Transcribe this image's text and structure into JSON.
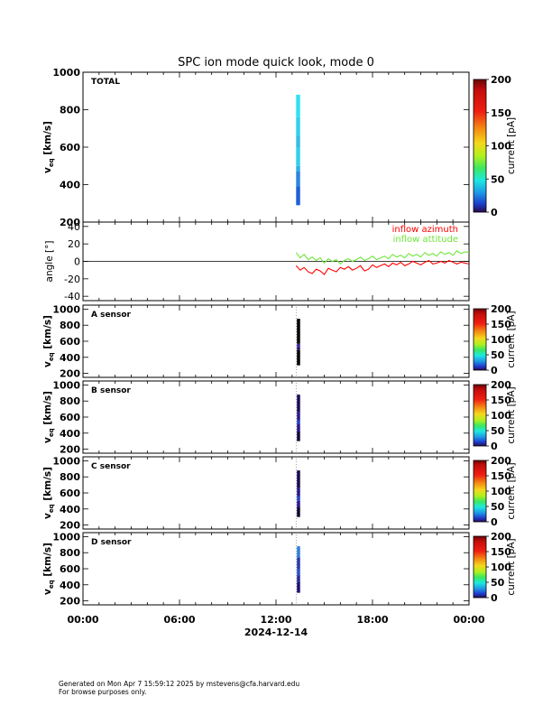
{
  "header": {
    "title": "SPC ion mode quick look, mode 0"
  },
  "x_axis": {
    "ticks": [
      "00:00",
      "06:00",
      "12:00",
      "18:00",
      "00:00"
    ],
    "date": "2024-12-14"
  },
  "ylabels": {
    "v": "v",
    "v_sub": "eq",
    "v_unit": "[km/s]",
    "angle": "angle [°]",
    "current": "current [pA]"
  },
  "colors": {
    "azimuth": "#ff0000",
    "attitude": "#6fe639",
    "zero_line": "#000000"
  },
  "footer": {
    "line1": "Generated on Mon Apr  7 15:59:12 2025 by mstevens@cfa.harvard.edu",
    "line2": "For browse purposes only."
  },
  "chart_data": [
    {
      "type": "heatmap",
      "panel_label": "TOTAL",
      "xlim_hours": [
        0,
        24
      ],
      "ylim": [
        200,
        1000
      ],
      "yticks": [
        "200",
        "400",
        "600",
        "800",
        "1000"
      ],
      "colorbar": {
        "range": [
          0,
          200
        ],
        "ticks": [
          "0",
          "50",
          "100",
          "150",
          "200"
        ],
        "label": "current [pA]"
      },
      "columns": [
        {
          "x_hours": [
            13.25,
            13.5
          ],
          "bins": [
            {
              "v": [
                290,
                390
              ],
              "color": "#1d5fd6"
            },
            {
              "v": [
                390,
                470
              ],
              "color": "#2a86e0"
            },
            {
              "v": [
                470,
                500
              ],
              "color": "#2fb0e6"
            },
            {
              "v": [
                500,
                600
              ],
              "color": "#32d0ea"
            },
            {
              "v": [
                600,
                660
              ],
              "color": "#36bde6"
            },
            {
              "v": [
                660,
                760
              ],
              "color": "#33d0ee"
            },
            {
              "v": [
                760,
                880
              ],
              "color": "#30e2f0"
            }
          ]
        }
      ]
    },
    {
      "type": "line",
      "xlim_hours": [
        0,
        24
      ],
      "ylim": [
        -45,
        45
      ],
      "yticks": [
        "-40",
        "-20",
        "0",
        "20",
        "40"
      ],
      "series": [
        {
          "name": "inflow azimuth",
          "color": "#ff0000",
          "x_hours": [
            13.25,
            13.5,
            13.75,
            14.0,
            14.25,
            14.5,
            14.75,
            15.0,
            15.25,
            15.5,
            15.75,
            16.0,
            16.25,
            16.5,
            16.75,
            17.0,
            17.25,
            17.5,
            17.75,
            18.0,
            18.25,
            18.5,
            18.75,
            19.0,
            19.25,
            19.5,
            19.75,
            20.0,
            20.25,
            20.5,
            20.75,
            21.0,
            21.25,
            21.5,
            21.75,
            22.0,
            22.25,
            22.5,
            22.75,
            23.0,
            23.25,
            23.5,
            23.75,
            24.0
          ],
          "values": [
            -5,
            -10,
            -7,
            -12,
            -14,
            -9,
            -11,
            -15,
            -8,
            -10,
            -12,
            -7,
            -9,
            -6,
            -10,
            -8,
            -5,
            -11,
            -9,
            -4,
            -7,
            -5,
            -3,
            -6,
            -2,
            -4,
            -1,
            -5,
            -3,
            0,
            -2,
            -4,
            -1,
            1,
            -3,
            -2,
            0,
            -2,
            1,
            -1,
            -3,
            -1,
            -2,
            -3
          ]
        },
        {
          "name": "inflow attitude",
          "color": "#6fe639",
          "x_hours": [
            13.25,
            13.5,
            13.75,
            14.0,
            14.25,
            14.5,
            14.75,
            15.0,
            15.25,
            15.5,
            15.75,
            16.0,
            16.25,
            16.5,
            16.75,
            17.0,
            17.25,
            17.5,
            17.75,
            18.0,
            18.25,
            18.5,
            18.75,
            19.0,
            19.25,
            19.5,
            19.75,
            20.0,
            20.25,
            20.5,
            20.75,
            21.0,
            21.25,
            21.5,
            21.75,
            22.0,
            22.25,
            22.5,
            22.75,
            23.0,
            23.25,
            23.5,
            23.75,
            24.0
          ],
          "values": [
            10,
            4,
            8,
            2,
            5,
            1,
            4,
            -2,
            3,
            0,
            2,
            -3,
            1,
            3,
            0,
            2,
            5,
            1,
            3,
            6,
            2,
            4,
            6,
            3,
            8,
            5,
            7,
            4,
            9,
            6,
            8,
            5,
            10,
            7,
            9,
            6,
            11,
            8,
            10,
            7,
            12,
            9,
            11,
            10
          ]
        }
      ]
    },
    {
      "type": "heatmap",
      "panel_label": "A sensor",
      "xlim_hours": [
        0,
        24
      ],
      "ylim": [
        150,
        1050
      ],
      "yticks": [
        "200",
        "400",
        "600",
        "800",
        "1000"
      ],
      "colorbar": {
        "range": [
          0,
          200
        ],
        "ticks": [
          "0",
          "50",
          "100",
          "150",
          "200"
        ],
        "label": "current [pA]"
      },
      "columns": [
        {
          "x_hours": [
            13.3,
            13.5
          ],
          "bins": [
            {
              "v": [
                300,
                490
              ],
              "color": "#000000"
            },
            {
              "v": [
                490,
                530
              ],
              "color": "#2a0f6a"
            },
            {
              "v": [
                530,
                570
              ],
              "color": "#3b1f9a"
            },
            {
              "v": [
                570,
                880
              ],
              "color": "#000000"
            }
          ]
        }
      ]
    },
    {
      "type": "heatmap",
      "panel_label": "B sensor",
      "xlim_hours": [
        0,
        24
      ],
      "ylim": [
        150,
        1050
      ],
      "yticks": [
        "200",
        "400",
        "600",
        "800",
        "1000"
      ],
      "colorbar": {
        "range": [
          0,
          200
        ],
        "ticks": [
          "0",
          "50",
          "100",
          "150",
          "200"
        ],
        "label": "current [pA]"
      },
      "columns": [
        {
          "x_hours": [
            13.3,
            13.5
          ],
          "bins": [
            {
              "v": [
                300,
                420
              ],
              "color": "#160838"
            },
            {
              "v": [
                420,
                510
              ],
              "color": "#2a1a8a"
            },
            {
              "v": [
                510,
                560
              ],
              "color": "#2440c4"
            },
            {
              "v": [
                560,
                660
              ],
              "color": "#2a1a8a"
            },
            {
              "v": [
                660,
                880
              ],
              "color": "#1d0c58"
            }
          ]
        }
      ]
    },
    {
      "type": "heatmap",
      "panel_label": "C sensor",
      "xlim_hours": [
        0,
        24
      ],
      "ylim": [
        150,
        1050
      ],
      "yticks": [
        "200",
        "400",
        "600",
        "800",
        "1000"
      ],
      "colorbar": {
        "range": [
          0,
          200
        ],
        "ticks": [
          "0",
          "50",
          "100",
          "150",
          "200"
        ],
        "label": "current [pA]"
      },
      "columns": [
        {
          "x_hours": [
            13.3,
            13.5
          ],
          "bins": [
            {
              "v": [
                300,
                420
              ],
              "color": "#12062e"
            },
            {
              "v": [
                420,
                500
              ],
              "color": "#2a1a8a"
            },
            {
              "v": [
                500,
                560
              ],
              "color": "#2440c4"
            },
            {
              "v": [
                560,
                660
              ],
              "color": "#261a8a"
            },
            {
              "v": [
                660,
                880
              ],
              "color": "#1a0a4a"
            }
          ]
        }
      ]
    },
    {
      "type": "heatmap",
      "panel_label": "D sensor",
      "xlim_hours": [
        0,
        24
      ],
      "ylim": [
        150,
        1050
      ],
      "yticks": [
        "200",
        "400",
        "600",
        "800",
        "1000"
      ],
      "colorbar": {
        "range": [
          0,
          200
        ],
        "ticks": [
          "0",
          "50",
          "100",
          "150",
          "200"
        ],
        "label": "current [pA]"
      },
      "columns": [
        {
          "x_hours": [
            13.3,
            13.5
          ],
          "bins": [
            {
              "v": [
                300,
                440
              ],
              "color": "#1e1270"
            },
            {
              "v": [
                440,
                520
              ],
              "color": "#2a2a9a"
            },
            {
              "v": [
                520,
                600
              ],
              "color": "#2850c8"
            },
            {
              "v": [
                600,
                740
              ],
              "color": "#2a3aa8"
            },
            {
              "v": [
                740,
                880
              ],
              "color": "#2f80da"
            }
          ]
        }
      ]
    }
  ]
}
